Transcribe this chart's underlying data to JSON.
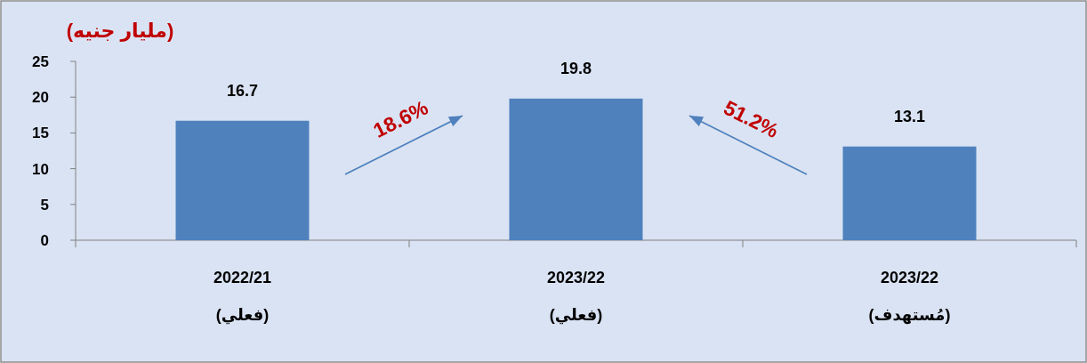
{
  "chart_data": {
    "type": "bar",
    "ylabel": "(مليار جنيه)",
    "categories": [
      "2022/21\n(فعلي)",
      "2023/22\n(فعلي)",
      "2023/22\n(مُستهدف)"
    ],
    "values": [
      16.7,
      19.8,
      13.1
    ],
    "color": "#4f81bd",
    "data_labels": true,
    "ylim": [
      0,
      25
    ],
    "yticks": [
      0,
      5,
      10,
      15,
      20,
      25
    ],
    "annotations": [
      "18.6%",
      "51.2%"
    ]
  }
}
